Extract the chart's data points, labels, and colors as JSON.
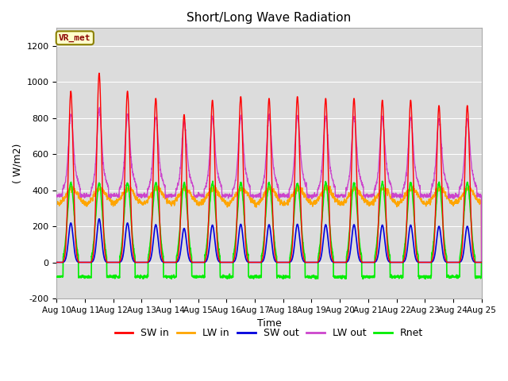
{
  "title": "Short/Long Wave Radiation",
  "ylabel": "( W/m2)",
  "xlabel": "Time",
  "annotation": "VR_met",
  "ylim": [
    -200,
    1300
  ],
  "yticks": [
    -200,
    0,
    200,
    400,
    600,
    800,
    1000,
    1200
  ],
  "legend": [
    "SW in",
    "LW in",
    "SW out",
    "LW out",
    "Rnet"
  ],
  "colors": {
    "SW in": "#ff0000",
    "LW in": "#ffa500",
    "SW out": "#0000dd",
    "LW out": "#cc44cc",
    "Rnet": "#00ee00"
  },
  "bg_color": "#dcdcdc",
  "n_days": 15,
  "start_day": 10,
  "SW_in_peaks": [
    950,
    1050,
    950,
    910,
    820,
    900,
    920,
    910,
    920,
    910,
    910,
    900,
    900,
    870,
    870
  ]
}
